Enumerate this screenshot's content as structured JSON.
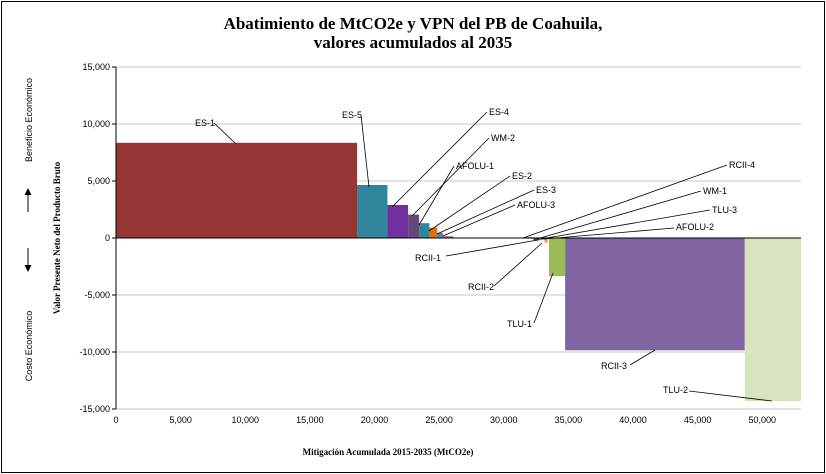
{
  "chart_data": {
    "type": "bar",
    "title_line1": "Abatimiento de MtCO2e y VPN del PB de Coahuila,",
    "title_line2": "valores acumulados al 2035",
    "xlabel": "Mitigación Acumulada 2015-2035 (MtCO2e)",
    "ylabel": "Valor Presente Neto del Producto Bruto",
    "side_top": "Beneficio Económico",
    "side_bottom": "Costo Económico",
    "xlim": [
      0,
      53000
    ],
    "ylim": [
      -15000,
      15000
    ],
    "x_ticks": [
      0,
      5000,
      10000,
      15000,
      20000,
      25000,
      30000,
      35000,
      40000,
      45000,
      50000
    ],
    "x_tick_labels": [
      "0",
      "5,000",
      "10,000",
      "15,000",
      "20,000",
      "25,000",
      "30,000",
      "35,000",
      "40,000",
      "45,000",
      "50,000"
    ],
    "y_ticks": [
      15000,
      10000,
      5000,
      0,
      -5000,
      -10000,
      -15000
    ],
    "y_tick_labels": [
      "15,000",
      "10,000",
      "5,000",
      "0",
      "-5,000",
      "-10,000",
      "-15,000"
    ],
    "bars": [
      {
        "name": "ES-1",
        "x0": 0,
        "x1": 18650,
        "value": 8350,
        "color": "#953735"
      },
      {
        "name": "ES-5",
        "x0": 18650,
        "x1": 21000,
        "value": 4650,
        "color": "#31859c"
      },
      {
        "name": "ES-4",
        "x0": 21000,
        "x1": 22600,
        "value": 2900,
        "color": "#7030a0"
      },
      {
        "name": "WM-2",
        "x0": 22600,
        "x1": 23450,
        "value": 2050,
        "color": "#604a7b"
      },
      {
        "name": "AFOLU-1",
        "x0": 23450,
        "x1": 24250,
        "value": 1300,
        "color": "#31859c"
      },
      {
        "name": "ES-2",
        "x0": 24250,
        "x1": 24850,
        "value": 900,
        "color": "#e46c0a"
      },
      {
        "name": "ES-3",
        "x0": 24850,
        "x1": 25300,
        "value": 450,
        "color": "#4f81bd"
      },
      {
        "name": "AFOLU-3",
        "x0": 25300,
        "x1": 26100,
        "value": 150,
        "color": "#c0504d"
      },
      {
        "name": "RCII-4",
        "x0": 31500,
        "x1": 32300,
        "value": 80,
        "color": "#77933c"
      },
      {
        "name": "RCII-1",
        "x0": 32300,
        "x1": 32800,
        "value": -200,
        "color": "#1f497d"
      },
      {
        "name": "WM-1",
        "x0": 32800,
        "x1": 33000,
        "value": -150,
        "color": "#8064a2"
      },
      {
        "name": "TLU-3",
        "x0": 33000,
        "x1": 33150,
        "value": -150,
        "color": "#4bacc6"
      },
      {
        "name": "RCII-2",
        "x0": 33150,
        "x1": 33400,
        "value": -400,
        "color": "#f79646"
      },
      {
        "name": "AFOLU-2",
        "x0": 33400,
        "x1": 33500,
        "value": -100,
        "color": "#9bbb59"
      },
      {
        "name": "TLU-1",
        "x0": 33500,
        "x1": 34750,
        "value": -3350,
        "color": "#9bbb59"
      },
      {
        "name": "RCII-3",
        "x0": 34750,
        "x1": 48650,
        "value": -9850,
        "color": "#8064a2"
      },
      {
        "name": "TLU-2",
        "x0": 48650,
        "x1": 53000,
        "value": -14300,
        "color": "#d7e4bd"
      }
    ]
  }
}
